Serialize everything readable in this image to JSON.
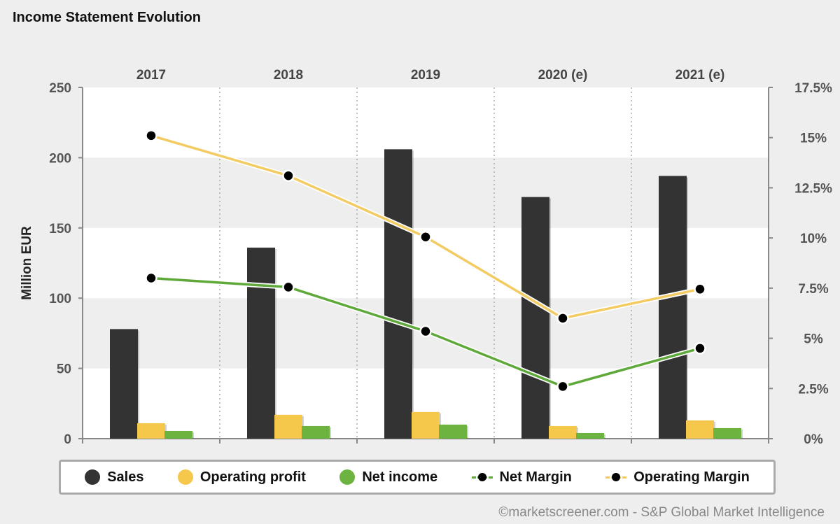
{
  "title": "Income Statement Evolution",
  "credit": "©marketscreener.com - S&P Global Market Intelligence",
  "colors": {
    "sales": "#333333",
    "operating_profit": "#f5c84c",
    "net_income": "#6db33f",
    "net_margin": "#5fa83a",
    "operating_margin": "#f3cb63"
  },
  "legend": [
    {
      "label": "Sales",
      "kind": "dot",
      "color_key": "sales"
    },
    {
      "label": "Operating profit",
      "kind": "dot",
      "color_key": "operating_profit"
    },
    {
      "label": "Net income",
      "kind": "dot",
      "color_key": "net_income"
    },
    {
      "label": "Net Margin",
      "kind": "line",
      "color_key": "net_margin"
    },
    {
      "label": "Operating Margin",
      "kind": "line",
      "color_key": "operating_margin"
    }
  ],
  "chart_data": {
    "type": "bar",
    "title": "Income Statement Evolution",
    "categories": [
      "2017",
      "2018",
      "2019",
      "2020 (e)",
      "2021 (e)"
    ],
    "ylabel": "Million EUR",
    "ylim": [
      0,
      250
    ],
    "yticks": [
      0,
      50,
      100,
      150,
      200,
      250
    ],
    "y2lim": [
      0,
      17.5
    ],
    "y2ticks": [
      "0%",
      "2.5%",
      "5%",
      "7.5%",
      "10%",
      "12.5%",
      "15%",
      "17.5%"
    ],
    "y2tick_values": [
      0,
      2.5,
      5,
      7.5,
      10,
      12.5,
      15,
      17.5
    ],
    "grid": "horizontal-bands",
    "legend_position": "bottom",
    "series": [
      {
        "name": "Sales",
        "type": "bar",
        "axis": "left",
        "values": [
          78,
          136,
          206,
          172,
          187
        ]
      },
      {
        "name": "Operating profit",
        "type": "bar",
        "axis": "left",
        "values": [
          11,
          17,
          19,
          9,
          13
        ]
      },
      {
        "name": "Net income",
        "type": "bar",
        "axis": "left",
        "values": [
          5.5,
          9,
          10,
          4,
          7.5
        ]
      },
      {
        "name": "Net Margin",
        "type": "line",
        "axis": "right",
        "values": [
          8.0,
          7.55,
          5.35,
          2.6,
          4.5
        ]
      },
      {
        "name": "Operating Margin",
        "type": "line",
        "axis": "right",
        "values": [
          15.1,
          13.1,
          10.05,
          6.0,
          7.45
        ]
      }
    ]
  }
}
